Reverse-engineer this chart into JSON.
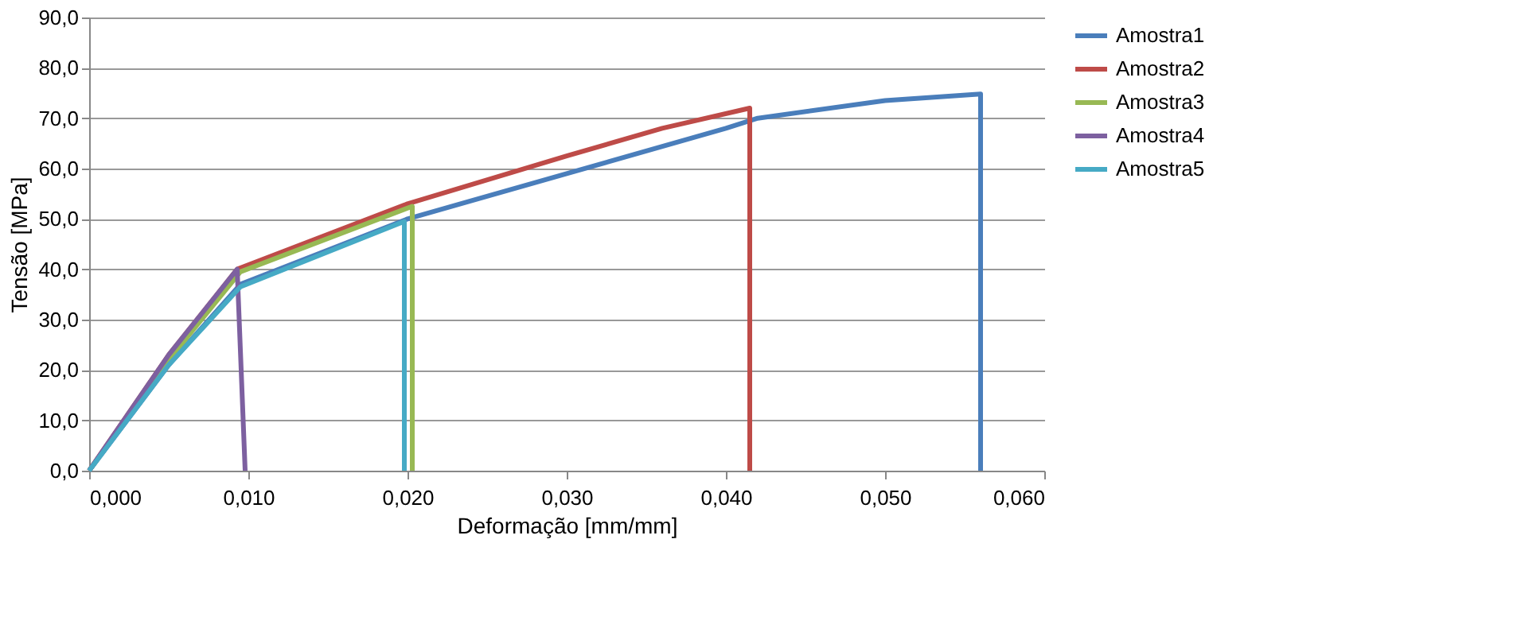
{
  "chart_data": {
    "type": "line",
    "xlabel": "Deformação [mm/mm]",
    "ylabel": "Tensão [MPa]",
    "xlim": [
      0,
      0.06
    ],
    "xticks": [
      {
        "value": 0,
        "label": "0,000"
      },
      {
        "value": 0.01,
        "label": "0,010"
      },
      {
        "value": 0.02,
        "label": "0,020"
      },
      {
        "value": 0.03,
        "label": "0,030"
      },
      {
        "value": 0.04,
        "label": "0,040"
      },
      {
        "value": 0.05,
        "label": "0,050"
      },
      {
        "value": 0.06,
        "label": "0,060"
      }
    ],
    "ylim": [
      0,
      90
    ],
    "yticks": [
      {
        "value": 0,
        "label": "0,0"
      },
      {
        "value": 10,
        "label": "10,0"
      },
      {
        "value": 20,
        "label": "20,0"
      },
      {
        "value": 30,
        "label": "30,0"
      },
      {
        "value": 40,
        "label": "40,0"
      },
      {
        "value": 50,
        "label": "50,0"
      },
      {
        "value": 60,
        "label": "60,0"
      },
      {
        "value": 70,
        "label": "70,0"
      },
      {
        "value": 80,
        "label": "80,0"
      },
      {
        "value": 90,
        "label": "90,0"
      }
    ],
    "grid": "y",
    "legend": "right",
    "marker": "none",
    "line_style": "solid",
    "series": [
      {
        "name": "Amostra1",
        "color": "#4a7ebb",
        "x": [
          0,
          0.005,
          0.0095,
          0.02,
          0.03,
          0.04,
          0.042,
          0.05,
          0.056,
          0.056
        ],
        "values": [
          0,
          21,
          37,
          50,
          59,
          68,
          70,
          73.5,
          74.8,
          0
        ]
      },
      {
        "name": "Amostra2",
        "color": "#be4b48",
        "x": [
          0,
          0.005,
          0.0093,
          0.02,
          0.03,
          0.036,
          0.0415,
          0.0415
        ],
        "values": [
          0,
          23,
          40,
          53,
          62.5,
          68,
          72,
          0
        ]
      },
      {
        "name": "Amostra3",
        "color": "#98b954",
        "x": [
          0,
          0.005,
          0.0095,
          0.0203,
          0.0203
        ],
        "values": [
          0,
          22,
          39.5,
          52.5,
          0
        ]
      },
      {
        "name": "Amostra4",
        "color": "#7d60a0",
        "x": [
          0,
          0.005,
          0.0093,
          0.0098
        ],
        "values": [
          0,
          23,
          40,
          0
        ]
      },
      {
        "name": "Amostra5",
        "color": "#46aac5",
        "x": [
          0,
          0.005,
          0.0095,
          0.0198,
          0.0198
        ],
        "values": [
          0,
          21,
          36.5,
          49.5,
          0
        ]
      }
    ]
  }
}
